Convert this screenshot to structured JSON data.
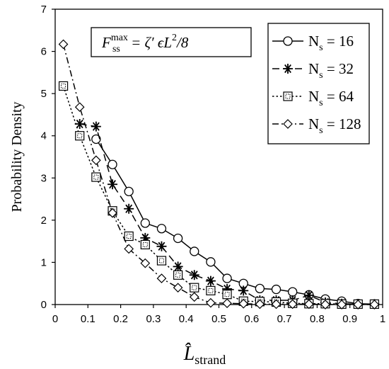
{
  "chart_data": {
    "type": "line",
    "xlabel": "L̂",
    "xlabel_sub": "strand",
    "ylabel": "Probability Density",
    "annotation": {
      "lhs": "F",
      "lhs_sub": "ss",
      "lhs_sup": "max",
      "rhs": "= ζ′ ϵ̇L",
      "rhs_sup": "2",
      "rhs_end": "/8"
    },
    "xlim": [
      0,
      1
    ],
    "ylim": [
      0,
      7
    ],
    "x_ticks": [
      "0",
      "0.1",
      "0.2",
      "0.3",
      "0.4",
      "0.5",
      "0.6",
      "0.7",
      "0.8",
      "0.9",
      "1"
    ],
    "y_ticks": [
      "0",
      "1",
      "2",
      "3",
      "4",
      "5",
      "6",
      "7"
    ],
    "legend_position": "top-right",
    "series": [
      {
        "name": "N",
        "name_sub": "s",
        "name_val": "= 16",
        "marker": "circle",
        "dash": "solid",
        "x": [
          0.125,
          0.175,
          0.225,
          0.275,
          0.325,
          0.375,
          0.425,
          0.475,
          0.525,
          0.575,
          0.625,
          0.675,
          0.725,
          0.775,
          0.825,
          0.875,
          0.925,
          0.975
        ],
        "values": [
          3.92,
          3.32,
          2.68,
          1.93,
          1.8,
          1.57,
          1.26,
          1.01,
          0.62,
          0.5,
          0.38,
          0.36,
          0.3,
          0.23,
          0.13,
          0.08,
          0.02,
          0.01
        ]
      },
      {
        "name": "N",
        "name_sub": "s",
        "name_val": "= 32",
        "marker": "asterisk",
        "dash": "dashed",
        "x": [
          0.075,
          0.125,
          0.175,
          0.225,
          0.275,
          0.325,
          0.375,
          0.425,
          0.475,
          0.525,
          0.575,
          0.625,
          0.675,
          0.725,
          0.775,
          0.825,
          0.875,
          0.925,
          0.975
        ],
        "values": [
          4.28,
          4.22,
          2.85,
          2.27,
          1.58,
          1.38,
          0.9,
          0.7,
          0.56,
          0.37,
          0.33,
          0.1,
          0.1,
          0.1,
          0.22,
          0.05,
          0.02,
          0.01,
          0.01
        ]
      },
      {
        "name": "N",
        "name_sub": "s",
        "name_val": "= 64",
        "marker": "square",
        "dash": "dotted",
        "x": [
          0.025,
          0.075,
          0.125,
          0.175,
          0.225,
          0.275,
          0.325,
          0.375,
          0.425,
          0.475,
          0.525,
          0.575,
          0.625,
          0.675,
          0.725,
          0.775,
          0.825,
          0.875,
          0.925,
          0.975
        ],
        "values": [
          5.18,
          4.0,
          3.02,
          2.22,
          1.62,
          1.42,
          1.04,
          0.7,
          0.4,
          0.33,
          0.24,
          0.08,
          0.07,
          0.06,
          0.03,
          0.02,
          0.02,
          0.01,
          0.01,
          0.01
        ]
      },
      {
        "name": "N",
        "name_sub": "s",
        "name_val": "= 128",
        "marker": "diamond",
        "dash": "dashdot",
        "x": [
          0.025,
          0.075,
          0.125,
          0.175,
          0.225,
          0.275,
          0.325,
          0.375,
          0.425,
          0.475,
          0.525,
          0.575,
          0.625,
          0.675,
          0.725,
          0.775,
          0.825,
          0.875,
          0.925,
          0.975
        ],
        "values": [
          6.17,
          4.68,
          3.42,
          2.17,
          1.32,
          0.98,
          0.62,
          0.4,
          0.18,
          0.04,
          0.03,
          0.02,
          0.01,
          0.01,
          0.01,
          0.01,
          0.0,
          0.0,
          0.0,
          0.0
        ]
      }
    ]
  }
}
